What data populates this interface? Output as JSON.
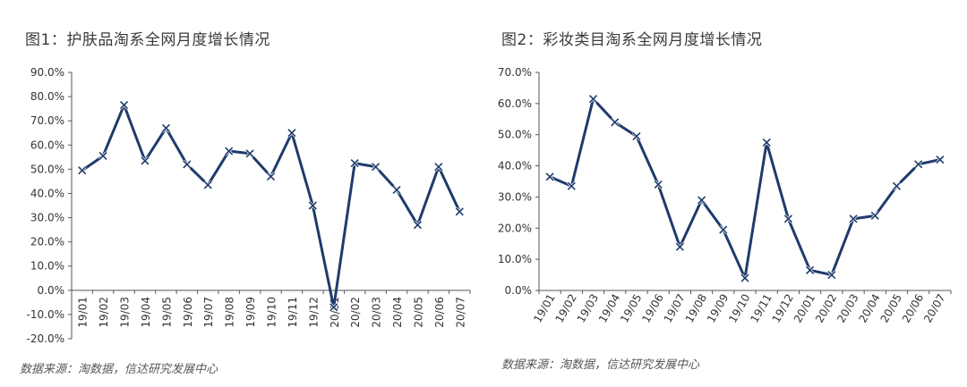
{
  "colors": {
    "line": "#1f3b6b",
    "axis": "#555555"
  },
  "chart_data": [
    {
      "type": "line",
      "title": "图1：护肤品淘系全网月度增长情况",
      "source": "数据来源：淘数据，信达研究发展中心",
      "categories": [
        "19/01",
        "19/02",
        "19/03",
        "19/04",
        "19/05",
        "19/06",
        "19/07",
        "19/08",
        "19/09",
        "19/10",
        "19/11",
        "19/12",
        "20/01",
        "20/02",
        "20/03",
        "20/04",
        "20/05",
        "20/06",
        "20/07"
      ],
      "series": [
        {
          "values": [
            49.5,
            55.5,
            76.5,
            53.5,
            67.0,
            52.0,
            43.5,
            57.5,
            56.5,
            47.0,
            65.0,
            35.0,
            -7.0,
            52.5,
            51.0,
            41.5,
            27.0,
            51.0,
            32.5
          ]
        }
      ],
      "ylim": [
        -20,
        90
      ],
      "yticks": [
        -20,
        -10,
        0,
        10,
        20,
        30,
        40,
        50,
        60,
        70,
        80,
        90
      ],
      "ytick_labels": [
        "-20.0%",
        "-10.0%",
        "0.0%",
        "10.0%",
        "20.0%",
        "30.0%",
        "40.0%",
        "50.0%",
        "60.0%",
        "70.0%",
        "80.0%",
        "90.0%"
      ],
      "grid": false,
      "marker": "x"
    },
    {
      "type": "line",
      "title": "图2：彩妆类目淘系全网月度增长情况",
      "source": "数据来源：淘数据，信达研究发展中心",
      "categories": [
        "19/01",
        "19/02",
        "19/03",
        "19/04",
        "19/05",
        "19/06",
        "19/07",
        "19/08",
        "19/09",
        "19/10",
        "19/11",
        "19/12",
        "20/01",
        "20/02",
        "20/03",
        "20/04",
        "20/05",
        "20/06",
        "20/07"
      ],
      "series": [
        {
          "values": [
            36.5,
            33.5,
            61.5,
            54.0,
            49.5,
            34.0,
            14.0,
            29.0,
            19.5,
            4.0,
            47.5,
            23.0,
            6.5,
            5.0,
            23.0,
            24.0,
            33.5,
            40.5,
            42.0
          ]
        }
      ],
      "ylim": [
        0,
        70
      ],
      "yticks": [
        0,
        10,
        20,
        30,
        40,
        50,
        60,
        70
      ],
      "ytick_labels": [
        "0.0%",
        "10.0%",
        "20.0%",
        "30.0%",
        "40.0%",
        "50.0%",
        "60.0%",
        "70.0%"
      ],
      "grid": false,
      "marker": "x"
    }
  ]
}
